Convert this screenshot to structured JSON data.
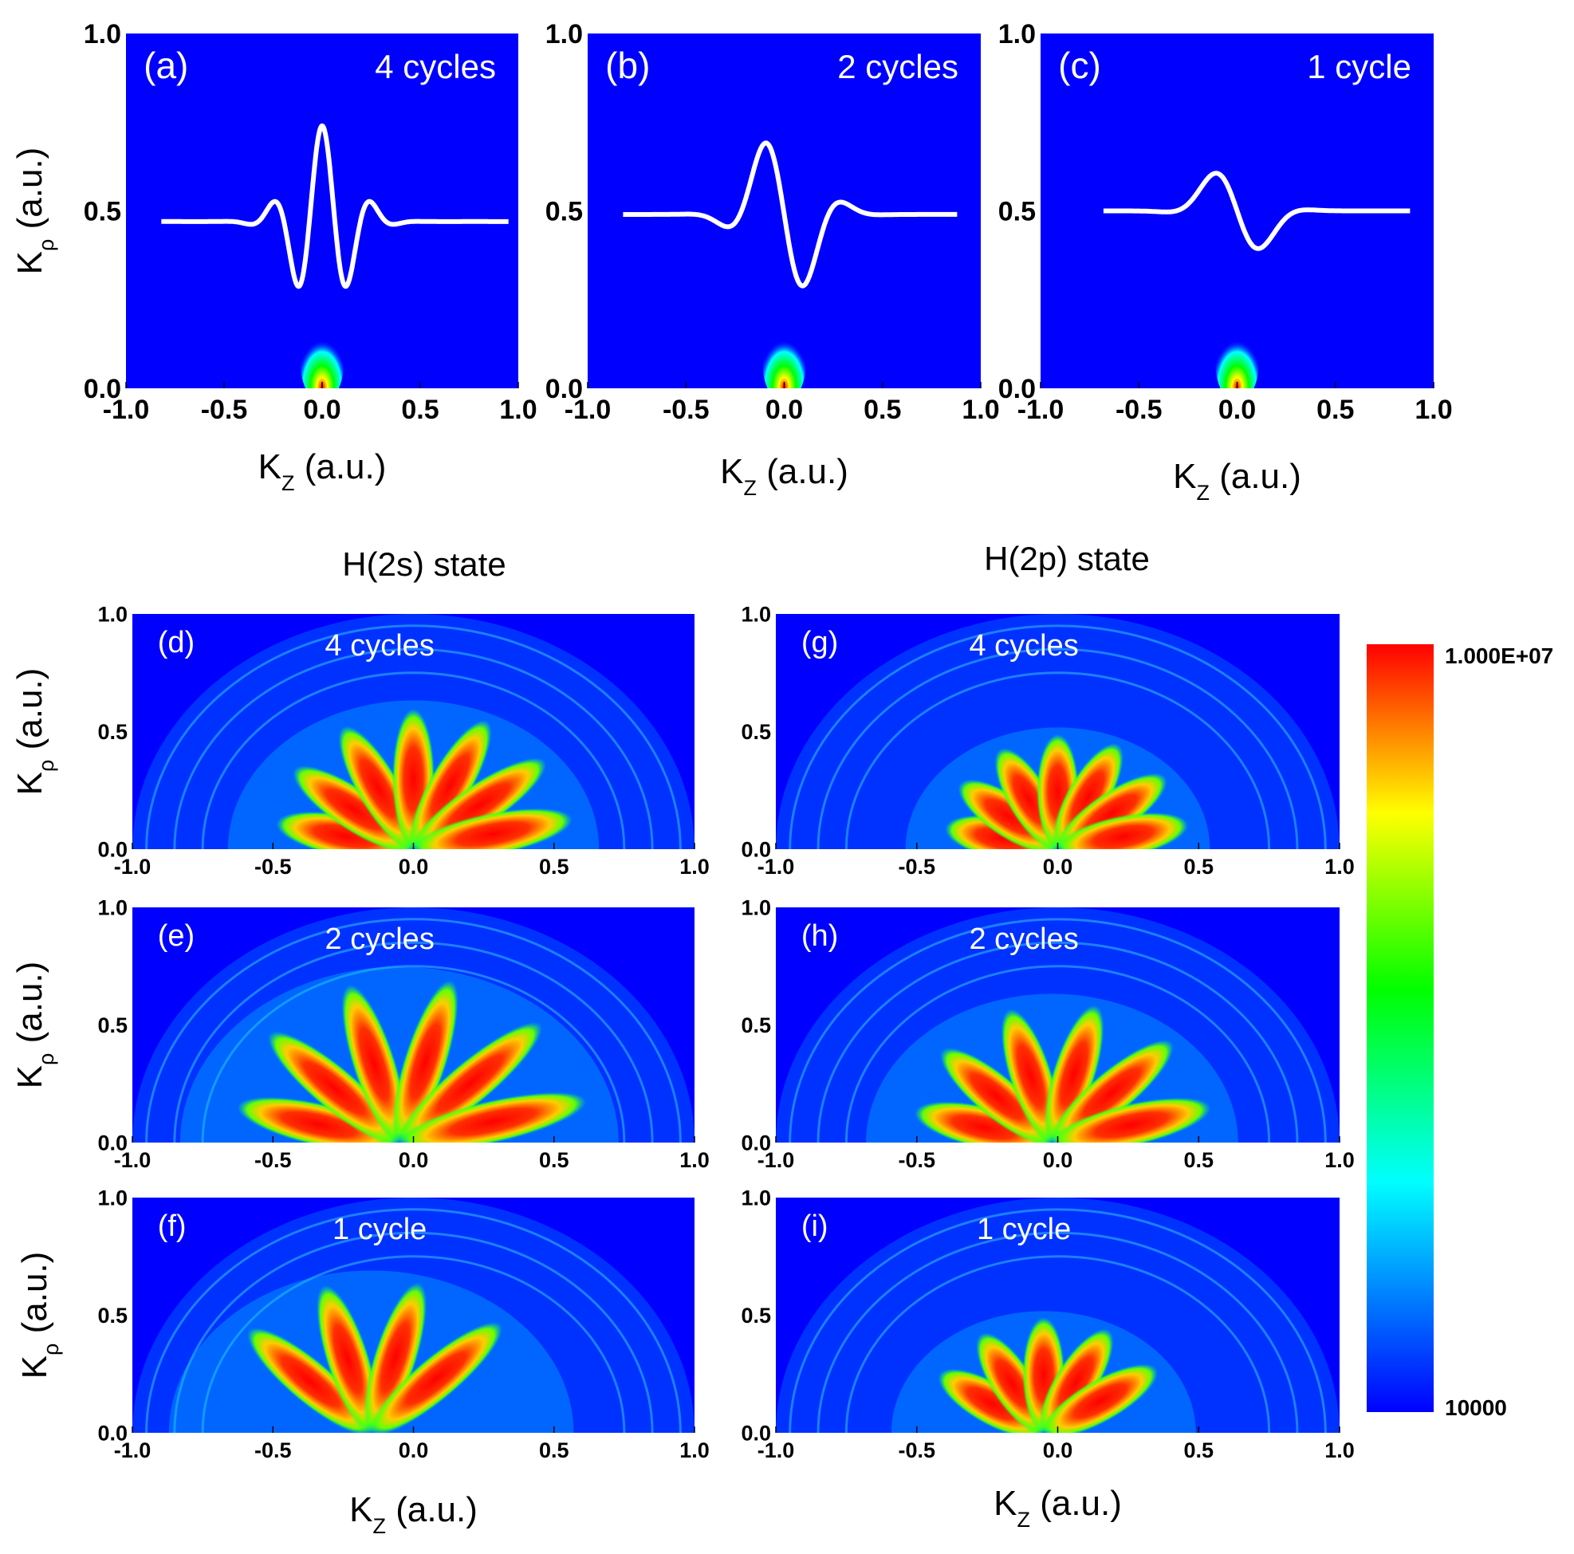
{
  "colors": {
    "background": "#0000ff",
    "trace": "#ffffff",
    "colormap": [
      "#0000ff",
      "#00ffff",
      "#00ff00",
      "#ffff00",
      "#ff0000"
    ]
  },
  "labels": {
    "kz": "K",
    "kz_sub": "Z",
    "kp": "K",
    "kp_sub": "ρ",
    "unit": " (a.u.)",
    "state_2s": "H(2s)  state",
    "state_2p": "H(2p)  state"
  },
  "colorbar": {
    "max_label": "1.000E+07",
    "min_label": "10000",
    "max": 10000000,
    "min": 10000,
    "scale": "log"
  },
  "chart_data": [
    {
      "type": "line",
      "panel": "(a)",
      "annotation": "4 cycles",
      "xlim": [
        -1.0,
        1.0
      ],
      "ylim": [
        0.0,
        1.0
      ],
      "xticks": [
        "-1.0",
        "-0.5",
        "0.0",
        "0.5",
        "1.0"
      ],
      "yticks": [
        "0.0",
        "0.5",
        "1.0"
      ],
      "x_range": [
        -0.82,
        0.95
      ],
      "baseline": 0.47,
      "cycles": 4,
      "period": 0.26,
      "amplitude": 0.27,
      "envelope_width": 0.2,
      "phase": "cos",
      "density_spot": {
        "x": 0.0,
        "y": 0.0,
        "peak": "red"
      }
    },
    {
      "type": "line",
      "panel": "(b)",
      "annotation": "2 cycles",
      "xlim": [
        -1.0,
        1.0
      ],
      "ylim": [
        0.0,
        1.0
      ],
      "xticks": [
        "-1.0",
        "-0.5",
        "0.0",
        "0.5",
        "1.0"
      ],
      "yticks": [
        "0.0",
        "0.5",
        "1.0"
      ],
      "x_range": [
        -0.82,
        0.88
      ],
      "baseline": 0.49,
      "cycles": 2,
      "period": 0.45,
      "amplitude": 0.25,
      "envelope_width": 0.22,
      "phase": "sin",
      "density_spot": {
        "x": 0.0,
        "y": 0.0,
        "peak": "red"
      }
    },
    {
      "type": "line",
      "panel": "(c)",
      "annotation": "1 cycle",
      "xlim": [
        -1.0,
        1.0
      ],
      "ylim": [
        0.0,
        1.0
      ],
      "xticks": [
        "-1.0",
        "-0.5",
        "0.0",
        "0.5",
        "1.0"
      ],
      "yticks": [
        "0.0",
        "0.5",
        "1.0"
      ],
      "x_range": [
        -0.68,
        0.88
      ],
      "baseline": 0.5,
      "cycles": 1,
      "period": 0.62,
      "amplitude": 0.16,
      "envelope_width": 0.2,
      "phase": "sin",
      "density_spot": {
        "x": 0.0,
        "y": 0.0,
        "peak": "red"
      }
    },
    {
      "type": "heatmap",
      "panel": "(d)",
      "annotation": "4 cycles",
      "state": "H(2s)",
      "xlim": [
        -1.0,
        1.0
      ],
      "ylim": [
        0.0,
        1.0
      ],
      "xticks": [
        "-1.0",
        "-0.5",
        "0.0",
        "0.5",
        "1.0"
      ],
      "yticks": [
        "0.0",
        "0.5",
        "1.0"
      ],
      "core_radius": 0.55,
      "outer_radius": 1.0,
      "lobes": 7,
      "shift": 0.0,
      "spread_deg": 90
    },
    {
      "type": "heatmap",
      "panel": "(e)",
      "annotation": "2 cycles",
      "state": "H(2s)",
      "xlim": [
        -1.0,
        1.0
      ],
      "ylim": [
        0.0,
        1.0
      ],
      "xticks": [
        "-1.0",
        "-0.5",
        "0.0",
        "0.5",
        "1.0"
      ],
      "yticks": [
        "0.0",
        "0.5",
        "1.0"
      ],
      "core_radius": 0.65,
      "outer_radius": 1.0,
      "lobes": 6,
      "shift": -0.05,
      "spread_deg": 90
    },
    {
      "type": "heatmap",
      "panel": "(f)",
      "annotation": "1 cycle",
      "state": "H(2s)",
      "xlim": [
        -1.0,
        1.0
      ],
      "ylim": [
        0.0,
        1.0
      ],
      "xticks": [
        "-1.0",
        "-0.5",
        "0.0",
        "0.5",
        "1.0"
      ],
      "yticks": [
        "0.0",
        "0.5",
        "1.0"
      ],
      "core_radius": 0.6,
      "outer_radius": 1.0,
      "lobes": 4,
      "shift": -0.15,
      "spread_deg": 60
    },
    {
      "type": "heatmap",
      "panel": "(g)",
      "annotation": "4 cycles",
      "state": "H(2p)",
      "xlim": [
        -1.0,
        1.0
      ],
      "ylim": [
        0.0,
        1.0
      ],
      "xticks": [
        "-1.0",
        "-0.5",
        "0.0",
        "0.5",
        "1.0"
      ],
      "yticks": [
        "0.0",
        "0.5",
        "1.0"
      ],
      "core_radius": 0.45,
      "outer_radius": 1.0,
      "lobes": 7,
      "shift": 0.0,
      "spread_deg": 90
    },
    {
      "type": "heatmap",
      "panel": "(h)",
      "annotation": "2 cycles",
      "state": "H(2p)",
      "xlim": [
        -1.0,
        1.0
      ],
      "ylim": [
        0.0,
        1.0
      ],
      "xticks": [
        "-1.0",
        "-0.5",
        "0.0",
        "0.5",
        "1.0"
      ],
      "yticks": [
        "0.0",
        "0.5",
        "1.0"
      ],
      "core_radius": 0.55,
      "outer_radius": 1.0,
      "lobes": 6,
      "shift": -0.02,
      "spread_deg": 90
    },
    {
      "type": "heatmap",
      "panel": "(i)",
      "annotation": "1 cycle",
      "state": "H(2p)",
      "xlim": [
        -1.0,
        1.0
      ],
      "ylim": [
        0.0,
        1.0
      ],
      "xticks": [
        "-1.0",
        "-0.5",
        "0.0",
        "0.5",
        "1.0"
      ],
      "yticks": [
        "0.0",
        "0.5",
        "1.0"
      ],
      "core_radius": 0.45,
      "outer_radius": 1.0,
      "lobes": 5,
      "shift": -0.05,
      "spread_deg": 70
    }
  ]
}
